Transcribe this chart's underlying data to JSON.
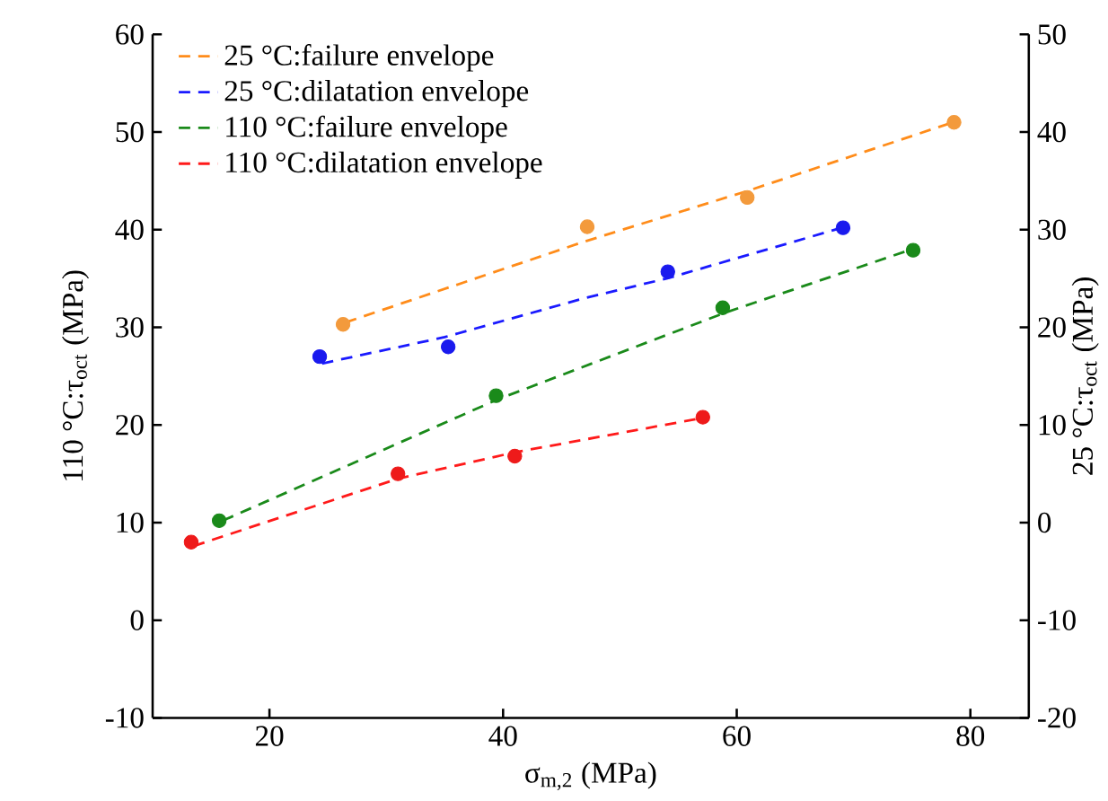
{
  "chart_data": {
    "type": "scatter",
    "xlabel": "σ$_{m,2}$ (MPa)",
    "ylabel": "110 °C:τ$_{oct}$ (MPa)",
    "y2label": "25 °C:τ$_{oct}$ (MPa)",
    "xlim": [
      10,
      85
    ],
    "xticks": [
      20,
      40,
      60,
      80
    ],
    "ylim": [
      -10,
      60
    ],
    "yticks": [
      -10,
      0,
      10,
      20,
      30,
      40,
      50,
      60
    ],
    "y2lim": [
      -20,
      50
    ],
    "y2ticks": [
      -20,
      -10,
      0,
      10,
      20,
      30,
      40,
      50
    ],
    "legend": "top left",
    "series": [
      {
        "axis": "y2",
        "color": "#f39a3c",
        "marker": "circle",
        "x": [
          26.3,
          47.2,
          60.9,
          78.6
        ],
        "values": [
          20.3,
          30.3,
          33.3,
          41
        ]
      },
      {
        "axis": "y2",
        "color": "#1a1aee",
        "marker": "circle",
        "x": [
          24.3,
          35.3,
          54.1,
          69.1
        ],
        "values": [
          17,
          18,
          25.7,
          30.2
        ]
      },
      {
        "axis": "y",
        "color": "#1a8a1a",
        "marker": "circle",
        "x": [
          15.7,
          39.4,
          58.8,
          75.1
        ],
        "values": [
          10.2,
          23,
          32,
          37.9
        ]
      },
      {
        "axis": "y",
        "color": "#ee1a1a",
        "marker": "circle",
        "x": [
          13.3,
          31,
          41,
          57.1
        ],
        "values": [
          8,
          15,
          16.8,
          20.8
        ]
      },
      {
        "type": "line",
        "axis": "y2",
        "name": "25 °C:failure envelope",
        "color": "#ff8c1a",
        "line_style": "dashed",
        "x": [
          26.5,
          47,
          61,
          78.5
        ],
        "values": [
          20.5,
          28.8,
          34,
          41
        ]
      },
      {
        "type": "line",
        "axis": "y2",
        "name": "25 °C:dilatation envelope",
        "color": "#1a1aff",
        "line_style": "dashed",
        "x": [
          24.5,
          35,
          47,
          54,
          69
        ],
        "values": [
          16.3,
          19,
          23,
          25,
          30.2
        ]
      },
      {
        "type": "line",
        "axis": "y",
        "name": "110 °C:failure envelope",
        "color": "#1a8a1a",
        "line_style": "dashed",
        "x": [
          16,
          39.5,
          59,
          75
        ],
        "values": [
          10.2,
          22.6,
          31.5,
          38
        ]
      },
      {
        "type": "line",
        "axis": "y",
        "name": "110 °C:dilatation envelope",
        "color": "#ff1a1a",
        "line_style": "dashed",
        "x": [
          13.5,
          31,
          41,
          57
        ],
        "values": [
          7.6,
          14.5,
          17.2,
          20.7
        ]
      }
    ]
  }
}
